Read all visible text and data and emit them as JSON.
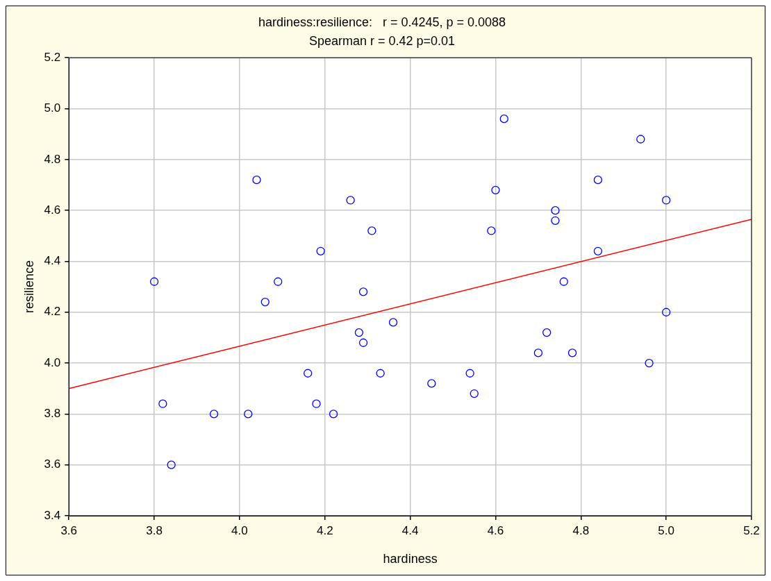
{
  "chart_data": {
    "type": "scatter",
    "title": "hardiness:resilience:   r = 0.4245, p = 0.0088",
    "subtitle": "Spearman r = 0.42 p=0.01",
    "xlabel": "hardiness",
    "ylabel": "resilience",
    "xlim": [
      3.6,
      5.2
    ],
    "ylim": [
      3.4,
      5.2
    ],
    "xticks": [
      {
        "value": 3.6,
        "label": "3.6"
      },
      {
        "value": 3.8,
        "label": "3.8"
      },
      {
        "value": 4,
        "label": "4.0"
      },
      {
        "value": 4.2,
        "label": "4.2"
      },
      {
        "value": 4.4,
        "label": "4.4"
      },
      {
        "value": 4.6,
        "label": "4.6"
      },
      {
        "value": 4.8,
        "label": "4.8"
      },
      {
        "value": 5,
        "label": "5.0"
      },
      {
        "value": 5.2,
        "label": "5.2"
      }
    ],
    "yticks": [
      {
        "value": 3.4,
        "label": "3.4"
      },
      {
        "value": 3.6,
        "label": "3.6"
      },
      {
        "value": 3.8,
        "label": "3.8"
      },
      {
        "value": 4,
        "label": "4.0"
      },
      {
        "value": 4.2,
        "label": "4.2"
      },
      {
        "value": 4.4,
        "label": "4.4"
      },
      {
        "value": 4.6,
        "label": "4.6"
      },
      {
        "value": 4.8,
        "label": "4.8"
      },
      {
        "value": 5,
        "label": "5.0"
      },
      {
        "value": 5.2,
        "label": "5.2"
      }
    ],
    "grid": true,
    "legend": false,
    "series": [
      {
        "type": "scatter",
        "color": "#0000ff",
        "marker": "circle",
        "x": [
          3.8,
          3.82,
          3.84,
          3.94,
          4.02,
          4.04,
          4.06,
          4.09,
          4.16,
          4.18,
          4.19,
          4.22,
          4.26,
          4.28,
          4.29,
          4.29,
          4.31,
          4.33,
          4.36,
          4.45,
          4.54,
          4.55,
          4.59,
          4.6,
          4.62,
          4.7,
          4.72,
          4.74,
          4.74,
          4.76,
          4.78,
          4.84,
          4.84,
          4.94,
          4.96,
          5.0,
          5.0
        ],
        "values": [
          4.32,
          3.84,
          3.6,
          3.8,
          3.8,
          4.72,
          4.24,
          4.32,
          3.96,
          3.84,
          4.44,
          3.8,
          4.64,
          4.12,
          4.28,
          4.08,
          4.52,
          3.96,
          4.16,
          3.92,
          3.96,
          3.88,
          4.52,
          4.68,
          4.96,
          4.04,
          4.12,
          4.6,
          4.56,
          4.32,
          4.04,
          4.72,
          4.44,
          4.88,
          4.0,
          4.64,
          4.2
        ]
      },
      {
        "type": "line",
        "color": "#ff0000",
        "marker": "none",
        "x": [
          3.6,
          5.2
        ],
        "values": [
          3.9,
          4.565
        ]
      }
    ]
  }
}
